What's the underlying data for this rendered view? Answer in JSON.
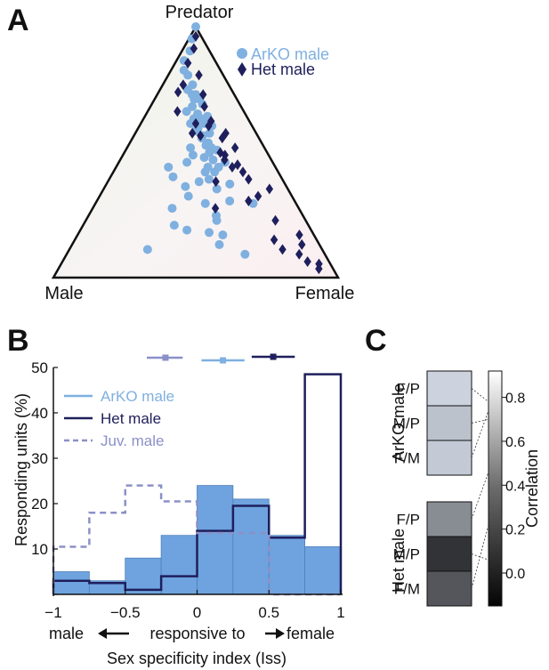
{
  "panels": {
    "a": "A",
    "b": "B",
    "c": "C"
  },
  "colors": {
    "arko": "#7fb0e0",
    "het": "#1e1f5c",
    "juv": "#8b90c8",
    "fill": "#6fa3df",
    "axis": "#111111"
  },
  "chart_data": [
    {
      "type": "scatter",
      "projection": "ternary",
      "vertex_labels": {
        "top": "Predator",
        "left": "Male",
        "right": "Female"
      },
      "legend": [
        "ArKO male",
        "Het male"
      ],
      "legend_position": "top-right",
      "series": [
        {
          "name": "ArKO male",
          "marker": "circle",
          "points": [
            [
              0.0,
              0.0
            ],
            [
              0.05,
              0.2
            ],
            [
              0.1,
              0.28
            ],
            [
              0.14,
              0.18
            ],
            [
              0.18,
              0.25
            ],
            [
              0.2,
              0.35
            ],
            [
              0.24,
              0.45
            ],
            [
              0.26,
              0.38
            ],
            [
              0.28,
              0.45
            ],
            [
              0.28,
              0.5
            ],
            [
              0.3,
              0.48
            ],
            [
              0.3,
              0.55
            ],
            [
              0.32,
              0.58
            ],
            [
              0.33,
              0.46
            ],
            [
              0.35,
              0.4
            ],
            [
              0.36,
              0.52
            ],
            [
              0.37,
              0.62
            ],
            [
              0.38,
              0.55
            ],
            [
              0.38,
              0.48
            ],
            [
              0.4,
              0.58
            ],
            [
              0.4,
              0.45
            ],
            [
              0.41,
              0.65
            ],
            [
              0.42,
              0.52
            ],
            [
              0.43,
              0.5
            ],
            [
              0.44,
              0.62
            ],
            [
              0.45,
              0.56
            ],
            [
              0.46,
              0.55
            ],
            [
              0.48,
              0.6
            ],
            [
              0.49,
              0.58
            ],
            [
              0.5,
              0.46
            ],
            [
              0.5,
              0.62
            ],
            [
              0.51,
              0.66
            ],
            [
              0.52,
              0.6
            ],
            [
              0.53,
              0.48
            ],
            [
              0.54,
              0.56
            ],
            [
              0.55,
              0.62
            ],
            [
              0.56,
              0.7
            ],
            [
              0.56,
              0.44
            ],
            [
              0.58,
              0.58
            ],
            [
              0.58,
              0.65
            ],
            [
              0.58,
              0.32
            ],
            [
              0.6,
              0.56
            ],
            [
              0.6,
              0.62
            ],
            [
              0.62,
              0.36
            ],
            [
              0.63,
              0.58
            ],
            [
              0.64,
              0.52
            ],
            [
              0.65,
              0.7
            ],
            [
              0.66,
              0.44
            ],
            [
              0.67,
              0.62
            ],
            [
              0.7,
              0.46
            ],
            [
              0.72,
              0.68
            ],
            [
              0.73,
              0.55
            ],
            [
              0.73,
              0.8
            ],
            [
              0.75,
              0.38
            ],
            [
              0.78,
              0.6
            ],
            [
              0.8,
              0.6
            ],
            [
              0.82,
              0.4
            ],
            [
              0.84,
              0.46
            ],
            [
              0.85,
              0.56
            ],
            [
              0.86,
              0.62
            ],
            [
              0.9,
              0.6
            ],
            [
              0.92,
              0.3
            ],
            [
              0.94,
              0.7
            ]
          ]
        },
        {
          "name": "Het male",
          "marker": "diamond",
          "points": [
            [
              0.04,
              0.5
            ],
            [
              0.09,
              0.42
            ],
            [
              0.15,
              0.3
            ],
            [
              0.2,
              0.56
            ],
            [
              0.24,
              0.3
            ],
            [
              0.27,
              0.25
            ],
            [
              0.28,
              0.6
            ],
            [
              0.33,
              0.6
            ],
            [
              0.35,
              0.3
            ],
            [
              0.39,
              0.65
            ],
            [
              0.4,
              0.5
            ],
            [
              0.41,
              0.62
            ],
            [
              0.44,
              0.47
            ],
            [
              0.44,
              0.76
            ],
            [
              0.45,
              0.54
            ],
            [
              0.46,
              0.72
            ],
            [
              0.5,
              0.8
            ],
            [
              0.52,
              0.68
            ],
            [
              0.53,
              0.71
            ],
            [
              0.55,
              0.7
            ],
            [
              0.57,
              0.78
            ],
            [
              0.58,
              0.74
            ],
            [
              0.6,
              0.8
            ],
            [
              0.63,
              0.82
            ],
            [
              0.64,
              0.62
            ],
            [
              0.67,
              0.92
            ],
            [
              0.7,
              0.84
            ],
            [
              0.72,
              0.78
            ],
            [
              0.75,
              0.6
            ],
            [
              0.8,
              0.88
            ],
            [
              0.86,
              0.96
            ],
            [
              0.88,
              0.84
            ],
            [
              0.9,
              0.95
            ],
            [
              0.92,
              0.86
            ],
            [
              0.94,
              0.92
            ],
            [
              0.97,
              0.94
            ],
            [
              0.98,
              0.98
            ],
            [
              1.0,
              0.97
            ]
          ]
        }
      ]
    },
    {
      "type": "bar",
      "subtype": "histogram",
      "ylabel": "Responding units (%)",
      "xlabel": "Sex specificity index (Iss)",
      "ylim": [
        0,
        50
      ],
      "xlim": [
        -1,
        1
      ],
      "yticks": [
        "0",
        "10",
        "20",
        "30",
        "40",
        "50"
      ],
      "xticks": [
        "−1",
        "−0.5",
        "0",
        "0.5",
        "1"
      ],
      "bin_edges": [
        -1,
        -0.75,
        -0.5,
        -0.25,
        0,
        0.25,
        0.5,
        0.75,
        1
      ],
      "direction_labels": {
        "left": "male",
        "middle": "responsive to",
        "right": "female"
      },
      "legend": [
        "ArKO male",
        "Het male",
        "Juv. male"
      ],
      "legend_position": "top-left",
      "series": [
        {
          "name": "ArKO male",
          "style": "filled",
          "values": [
            5,
            3,
            8,
            13,
            24,
            21,
            13,
            10.5
          ]
        },
        {
          "name": "Het male",
          "style": "solid",
          "values": [
            3,
            2.5,
            1,
            4,
            14,
            19.5,
            12.5,
            48.5
          ]
        },
        {
          "name": "Juv. male",
          "style": "dashed",
          "values": [
            10.5,
            18,
            24,
            20.5,
            13.5,
            13.5,
            0,
            0
          ]
        }
      ],
      "summary_points": [
        {
          "name": "Juv. male",
          "mean": -0.22,
          "low": -0.35,
          "high": -0.1
        },
        {
          "name": "ArKO male",
          "mean": 0.18,
          "low": 0.03,
          "high": 0.33
        },
        {
          "name": "Het male",
          "mean": 0.53,
          "low": 0.38,
          "high": 0.68
        }
      ]
    },
    {
      "type": "heatmap",
      "colorbar_label": "Correlation",
      "colorbar_ticks": [
        "0.0",
        "0.2",
        "0.4",
        "0.6",
        "0.8"
      ],
      "colorbar_range": [
        -0.15,
        0.92
      ],
      "groups": [
        {
          "name": "ArKO male",
          "rows": [
            "F/P",
            "M/P",
            "F/M"
          ],
          "values": [
            0.78,
            0.7,
            0.74
          ]
        },
        {
          "name": "Het male",
          "rows": [
            "F/P",
            "M/P",
            "F/M"
          ],
          "values": [
            0.46,
            0.06,
            0.22
          ]
        }
      ]
    }
  ]
}
